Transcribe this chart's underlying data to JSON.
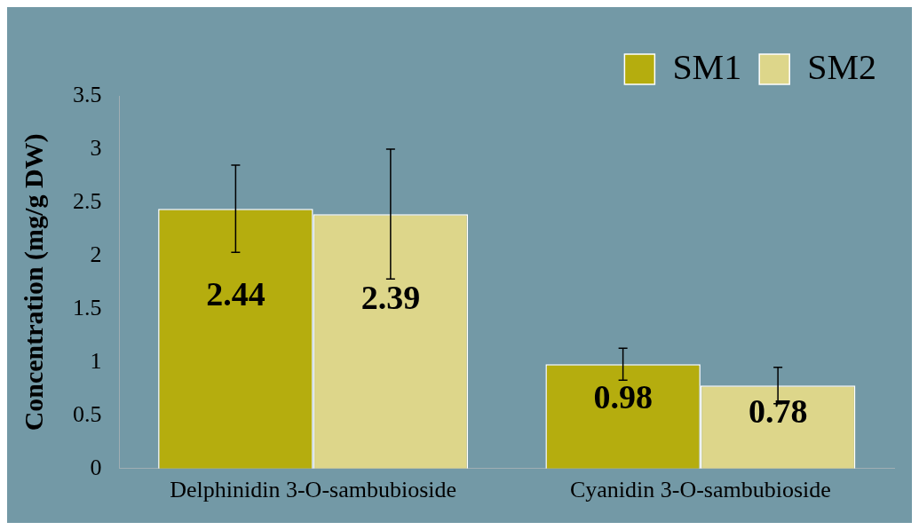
{
  "chart_data": {
    "type": "bar",
    "ylabel": "Concentration (mg/g DW)",
    "categories": [
      "Delphinidin 3-O-sambubioside",
      "Cyanidin 3-O-sambubioside"
    ],
    "series": [
      {
        "name": "SM1",
        "color": "#b5ad0e",
        "values": [
          2.44,
          0.98
        ],
        "errors": [
          0.41,
          0.15
        ]
      },
      {
        "name": "SM2",
        "color": "#ddd68a",
        "values": [
          2.39,
          0.78
        ],
        "errors": [
          0.61,
          0.17
        ]
      }
    ],
    "ylim": [
      0,
      3.5
    ],
    "yticks": [
      0,
      0.5,
      1,
      1.5,
      2,
      2.5,
      3,
      3.5
    ],
    "grid": false,
    "legend": "top right",
    "data_labels": true
  }
}
